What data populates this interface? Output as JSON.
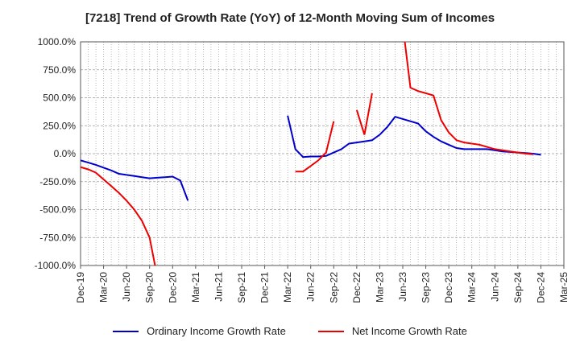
{
  "chart_data": {
    "type": "line",
    "title": "[7218]  Trend of Growth Rate (YoY) of 12-Month Moving Sum of Incomes",
    "xlabel": "",
    "ylabel": "",
    "ylim": [
      -1000,
      1000
    ],
    "y_ticks": [
      1000,
      750,
      500,
      250,
      0,
      -250,
      -500,
      -750,
      -1000
    ],
    "y_tick_labels": [
      "1000.0%",
      "750.0%",
      "500.0%",
      "250.0%",
      "0.0%",
      "-250.0%",
      "-500.0%",
      "-750.0%",
      "-1000.0%"
    ],
    "x_tick_labels": [
      "Dec-19",
      "Mar-20",
      "Jun-20",
      "Sep-20",
      "Dec-20",
      "Mar-21",
      "Jun-21",
      "Sep-21",
      "Dec-21",
      "Mar-22",
      "Jun-22",
      "Sep-22",
      "Dec-22",
      "Mar-23",
      "Jun-23",
      "Sep-23",
      "Dec-23",
      "Mar-24",
      "Jun-24",
      "Sep-24",
      "Dec-24",
      "Mar-25"
    ],
    "x_start": "2019-12",
    "x_months": 63,
    "grid": true,
    "legend_position": "bottom",
    "series": [
      {
        "name": "Ordinary Income Growth Rate",
        "color": "#0000cc",
        "values": [
          -60,
          -80,
          -100,
          -125,
          -150,
          -180,
          -190,
          -200,
          -210,
          -220,
          -215,
          -210,
          -205,
          -240,
          -420,
          null,
          null,
          null,
          null,
          null,
          null,
          null,
          null,
          null,
          null,
          null,
          null,
          null,
          null,
          null,
          null,
          null,
          null,
          null,
          null,
          null,
          null,
          null,
          null,
          null,
          null,
          null,
          null,
          null,
          null,
          null,
          null,
          null,
          null,
          null,
          null,
          null,
          null,
          null,
          null,
          null,
          null,
          null,
          null,
          null,
          null,
          null,
          null,
          null
        ]
      },
      {
        "name": "Net Income Growth Rate",
        "color": "#ee0000",
        "values": [
          -120,
          -140,
          -170,
          -230,
          -290,
          -350,
          -420,
          -500,
          -600,
          -750,
          -1100,
          null,
          null,
          null,
          null,
          null,
          null,
          null,
          null,
          null,
          null,
          null,
          null,
          null,
          null,
          null,
          null,
          null,
          null,
          null,
          null,
          null,
          null,
          null,
          null,
          null,
          null,
          null,
          null,
          null,
          null,
          null,
          null,
          null,
          null,
          null,
          null,
          null,
          null,
          null,
          null,
          null,
          null,
          null,
          null,
          null,
          null,
          null,
          null,
          null,
          null,
          null,
          null,
          null
        ]
      }
    ],
    "segments": {
      "ordinary_2": [
        [
          27,
          340
        ],
        [
          28,
          40
        ],
        [
          29,
          -30
        ],
        [
          30,
          -25
        ],
        [
          31,
          -25
        ],
        [
          32,
          -20
        ],
        [
          33,
          10
        ],
        [
          34,
          40
        ],
        [
          35,
          90
        ],
        [
          36,
          100
        ],
        [
          37,
          110
        ],
        [
          38,
          120
        ],
        [
          39,
          170
        ],
        [
          40,
          240
        ],
        [
          41,
          330
        ],
        [
          42,
          310
        ],
        [
          43,
          290
        ],
        [
          44,
          270
        ],
        [
          45,
          200
        ],
        [
          46,
          150
        ],
        [
          47,
          110
        ],
        [
          48,
          80
        ],
        [
          49,
          50
        ],
        [
          50,
          40
        ],
        [
          51,
          40
        ],
        [
          52,
          40
        ],
        [
          53,
          40
        ],
        [
          54,
          30
        ],
        [
          55,
          20
        ],
        [
          56,
          15
        ],
        [
          57,
          10
        ],
        [
          58,
          5
        ],
        [
          59,
          0
        ],
        [
          60,
          -10
        ]
      ],
      "net_2": [
        [
          28,
          -160
        ],
        [
          29,
          -160
        ],
        [
          30,
          -110
        ],
        [
          31,
          -60
        ],
        [
          32,
          10
        ],
        [
          33,
          290
        ]
      ],
      "net_3": [
        [
          36,
          390
        ],
        [
          37,
          170
        ],
        [
          38,
          540
        ]
      ],
      "net_4": [
        [
          42,
          1150
        ],
        [
          43,
          590
        ],
        [
          44,
          560
        ],
        [
          45,
          540
        ],
        [
          46,
          520
        ],
        [
          47,
          300
        ],
        [
          48,
          190
        ],
        [
          49,
          120
        ],
        [
          50,
          100
        ],
        [
          51,
          90
        ],
        [
          52,
          80
        ],
        [
          53,
          60
        ],
        [
          54,
          40
        ],
        [
          55,
          30
        ],
        [
          56,
          20
        ],
        [
          57,
          10
        ],
        [
          58,
          0
        ],
        [
          59,
          -5
        ]
      ]
    }
  },
  "legend": {
    "ordinary_label": "Ordinary Income Growth Rate",
    "net_label": "Net Income Growth Rate"
  }
}
